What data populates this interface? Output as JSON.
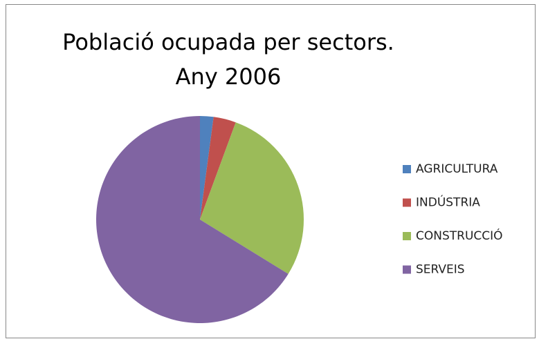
{
  "chart_data": {
    "type": "pie",
    "title": "Població ocupada per sectors. Any 2006",
    "categories": [
      "AGRICULTURA",
      "INDÚSTRIA",
      "CONSTRUCCIÓ",
      "SERVEIS"
    ],
    "values": [
      2.1,
      3.5,
      28.2,
      66.2
    ],
    "colors": [
      "#4f81bd",
      "#c0504d",
      "#9bbb59",
      "#8064a2"
    ],
    "legend": "right"
  }
}
